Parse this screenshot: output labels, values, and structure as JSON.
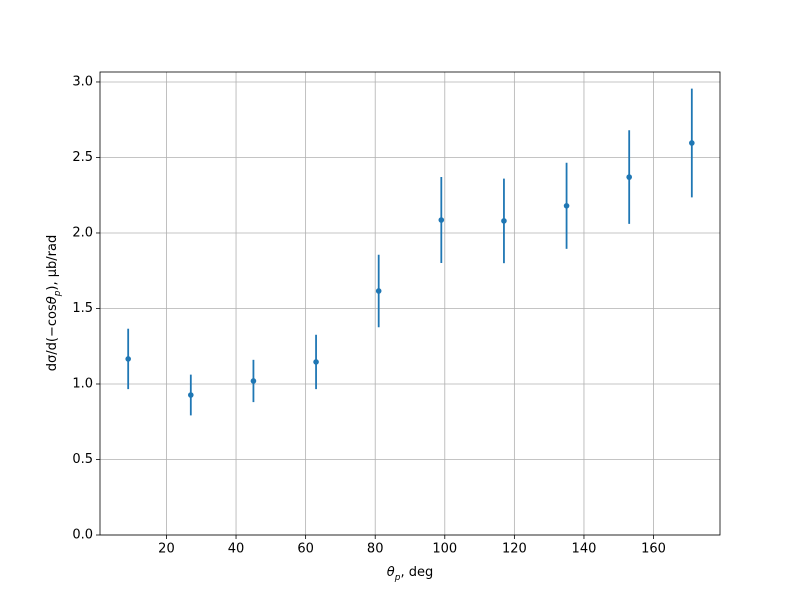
{
  "chart_data": {
    "type": "errorbar",
    "xlabel": [
      "θ",
      "p",
      ", deg"
    ],
    "ylabel": [
      "dσ/d(−cos",
      "θ",
      "p",
      "), μb/rad"
    ],
    "x": [
      9,
      27,
      45,
      63,
      81,
      99,
      117,
      135,
      153,
      171
    ],
    "series": [
      {
        "color": "#1f77b4",
        "values": [
          1.166,
          0.927,
          1.02,
          1.146,
          1.616,
          2.086,
          2.08,
          2.18,
          2.37,
          2.596
        ],
        "errors": [
          0.2,
          0.135,
          0.14,
          0.18,
          0.24,
          0.285,
          0.28,
          0.285,
          0.31,
          0.36
        ]
      }
    ],
    "xlim": [
      0.9,
      179.1
    ],
    "ylim": [
      0,
      3.066
    ],
    "xticks": [
      20,
      40,
      60,
      80,
      100,
      120,
      140,
      160
    ],
    "yticks": [
      {
        "value": 0,
        "label": "0.0"
      },
      {
        "value": 0.5,
        "label": "0.5"
      },
      {
        "value": 1,
        "label": "1.0"
      },
      {
        "value": 1.5,
        "label": "1.5"
      },
      {
        "value": 2,
        "label": "2.0"
      },
      {
        "value": 2.5,
        "label": "2.5"
      },
      {
        "value": 3,
        "label": "3.0"
      }
    ],
    "grid": true
  }
}
